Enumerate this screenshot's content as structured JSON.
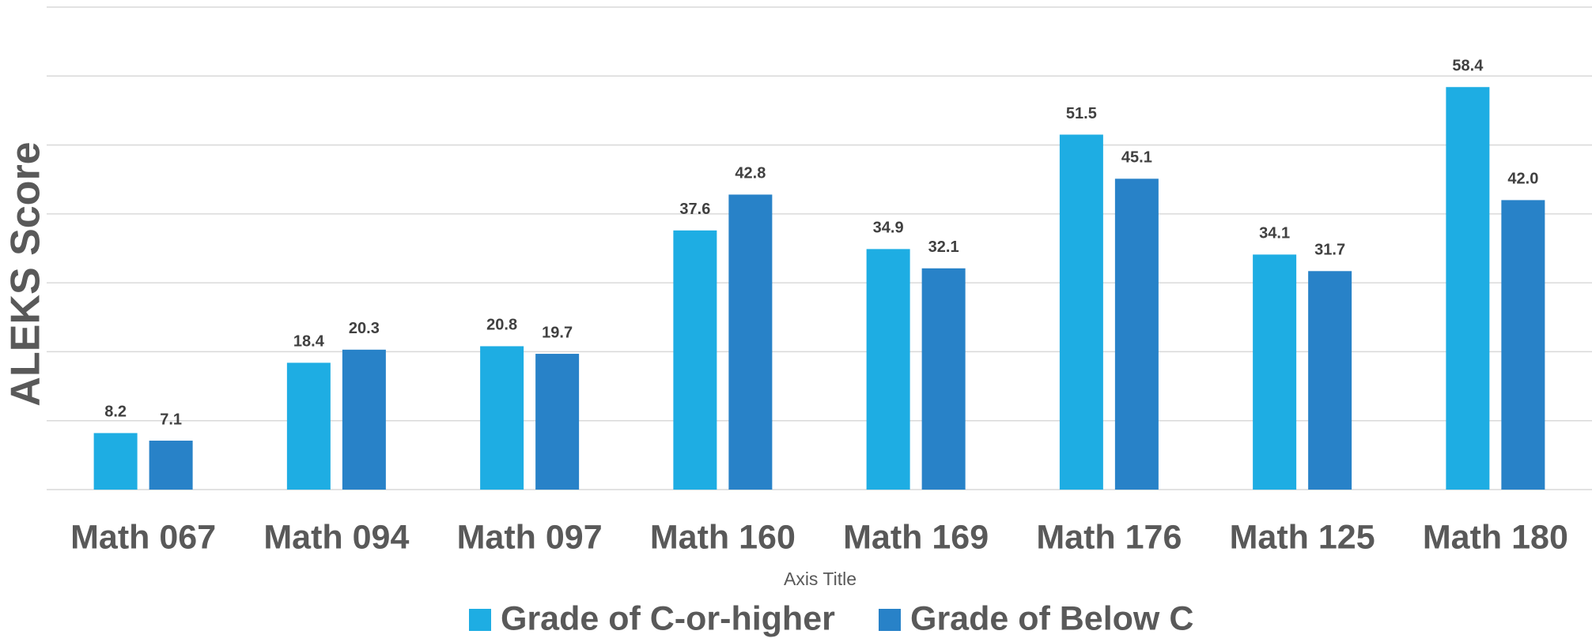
{
  "chart_data": {
    "type": "bar",
    "y_axis_title": "ALEKS Score",
    "x_axis_title": "Axis Title",
    "categories": [
      "Math 067",
      "Math 094",
      "Math 097",
      "Math 160",
      "Math 169",
      "Math 176",
      "Math 125",
      "Math 180"
    ],
    "series": [
      {
        "name": "Grade of C-or-higher",
        "color": "#1eade3",
        "values": [
          8.2,
          18.4,
          20.8,
          37.6,
          34.9,
          51.5,
          34.1,
          58.4
        ],
        "value_labels": [
          "8.2",
          "18.4",
          "20.8",
          "37.6",
          "34.9",
          "51.5",
          "34.1",
          "58.4"
        ]
      },
      {
        "name": "Grade of Below C",
        "color": "#2882c8",
        "values": [
          7.1,
          20.3,
          19.7,
          42.8,
          32.1,
          45.1,
          31.7,
          42.0
        ],
        "value_labels": [
          "7.1",
          "20.3",
          "19.7",
          "42.8",
          "32.1",
          "45.1",
          "31.7",
          "42.0"
        ]
      }
    ],
    "ylim": [
      0,
      70
    ],
    "yticks": [
      0,
      10,
      20,
      30,
      40,
      50,
      60,
      70
    ],
    "grid": true,
    "legend": "bottom"
  }
}
